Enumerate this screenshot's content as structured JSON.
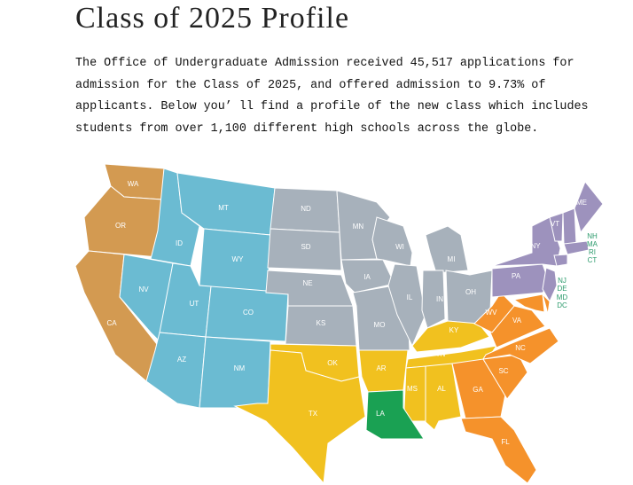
{
  "header": {
    "title": "Class of 2025 Profile",
    "intro": "The Office of Undergraduate Admission received 45,517 applications for admission for the Class of 2025, and offered admission to 9.73% of applicants. Below you’ ll find a profile of the new class which includes students from over 1,100 different high schools across the globe."
  },
  "map": {
    "label_color": "#ffffff",
    "outside_label_color": "#2a9a6b",
    "states": [
      {
        "label": "WA",
        "color": "#d39a51"
      },
      {
        "label": "OR",
        "color": "#d39a51"
      },
      {
        "label": "CA",
        "color": "#d39a51"
      },
      {
        "label": "NV",
        "color": "#6bbbd2"
      },
      {
        "label": "ID",
        "color": "#6bbbd2"
      },
      {
        "label": "MT",
        "color": "#6bbbd2"
      },
      {
        "label": "WY",
        "color": "#6bbbd2"
      },
      {
        "label": "UT",
        "color": "#6bbbd2"
      },
      {
        "label": "CO",
        "color": "#6bbbd2"
      },
      {
        "label": "AZ",
        "color": "#6bbbd2"
      },
      {
        "label": "NM",
        "color": "#6bbbd2"
      },
      {
        "label": "ND",
        "color": "#a7b1bb"
      },
      {
        "label": "SD",
        "color": "#a7b1bb"
      },
      {
        "label": "NE",
        "color": "#a7b1bb"
      },
      {
        "label": "KS",
        "color": "#a7b1bb"
      },
      {
        "label": "MN",
        "color": "#a7b1bb"
      },
      {
        "label": "IA",
        "color": "#a7b1bb"
      },
      {
        "label": "MO",
        "color": "#a7b1bb"
      },
      {
        "label": "WI",
        "color": "#a7b1bb"
      },
      {
        "label": "IL",
        "color": "#a7b1bb"
      },
      {
        "label": "MI",
        "color": "#a7b1bb"
      },
      {
        "label": "IN",
        "color": "#a7b1bb"
      },
      {
        "label": "OH",
        "color": "#a7b1bb"
      },
      {
        "label": "OK",
        "color": "#f1c11f"
      },
      {
        "label": "TX",
        "color": "#f1c11f"
      },
      {
        "label": "AR",
        "color": "#f1c11f"
      },
      {
        "label": "KY",
        "color": "#f1c11f"
      },
      {
        "label": "TN",
        "color": "#f1c11f"
      },
      {
        "label": "MS",
        "color": "#f1c11f"
      },
      {
        "label": "AL",
        "color": "#f1c11f"
      },
      {
        "label": "LA",
        "color": "#1aa153"
      },
      {
        "label": "GA",
        "color": "#f5922b"
      },
      {
        "label": "FL",
        "color": "#f5922b"
      },
      {
        "label": "SC",
        "color": "#f5922b"
      },
      {
        "label": "NC",
        "color": "#f5922b"
      },
      {
        "label": "VA",
        "color": "#f5922b"
      },
      {
        "label": "WV",
        "color": "#f5922b"
      },
      {
        "label": "PA",
        "color": "#9d92bd"
      },
      {
        "label": "NY",
        "color": "#9d92bd"
      },
      {
        "label": "VT",
        "color": "#9d92bd"
      },
      {
        "label": "NH",
        "color": "#9d92bd"
      },
      {
        "label": "ME",
        "color": "#9d92bd"
      },
      {
        "label": "MA",
        "color": "#9d92bd"
      },
      {
        "label": "RI",
        "color": "#9d92bd"
      },
      {
        "label": "CT",
        "color": "#9d92bd"
      },
      {
        "label": "NJ",
        "color": "#9d92bd"
      },
      {
        "label": "DE",
        "color": "#f5922b"
      },
      {
        "label": "MD",
        "color": "#f5922b"
      },
      {
        "label": "DC",
        "color": "#f5922b"
      }
    ]
  }
}
